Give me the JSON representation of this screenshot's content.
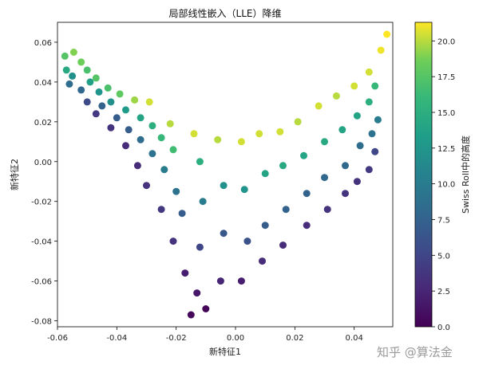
{
  "chart_data": {
    "type": "scatter",
    "title": "局部线性嵌入（LLE）降维",
    "xlabel": "新特征1",
    "ylabel": "新特征2",
    "xlim": [
      -0.06,
      0.053
    ],
    "ylim": [
      -0.083,
      0.07
    ],
    "xticks": [
      -0.06,
      -0.04,
      -0.02,
      0.0,
      0.02,
      0.04
    ],
    "xtick_labels": [
      "-0.06",
      "-0.04",
      "-0.02",
      "0.00",
      "0.02",
      "0.04"
    ],
    "yticks": [
      -0.08,
      -0.06,
      -0.04,
      -0.02,
      0.0,
      0.02,
      0.04,
      0.06
    ],
    "ytick_labels": [
      "-0.08",
      "-0.06",
      "-0.04",
      "-0.02",
      "0.00",
      "0.02",
      "0.04",
      "0.06"
    ],
    "grid": false,
    "colormap": "viridis",
    "colorbar": {
      "label": "Swiss Roll中的高度",
      "range": [
        0.0,
        21.3
      ],
      "ticks": [
        0.0,
        2.5,
        5.0,
        7.5,
        10.0,
        12.5,
        15.0,
        17.5,
        20.0
      ],
      "tick_labels": [
        "0.0",
        "2.5",
        "5.0",
        "7.5",
        "10.0",
        "12.5",
        "15.0",
        "17.5",
        "20.0"
      ]
    },
    "point_summary": "about 1000 points forming a V-shaped band; colour (height) increases from the bottom vertex up to the upper rim",
    "points": [
      {
        "x": -0.0575,
        "y": 0.053,
        "c": 17.5
      },
      {
        "x": -0.0545,
        "y": 0.055,
        "c": 19.0
      },
      {
        "x": -0.052,
        "y": 0.05,
        "c": 18.5
      },
      {
        "x": -0.057,
        "y": 0.046,
        "c": 14.5
      },
      {
        "x": -0.055,
        "y": 0.043,
        "c": 12.0
      },
      {
        "x": -0.056,
        "y": 0.039,
        "c": 8.5
      },
      {
        "x": -0.05,
        "y": 0.046,
        "c": 17.0
      },
      {
        "x": -0.049,
        "y": 0.04,
        "c": 13.5
      },
      {
        "x": -0.052,
        "y": 0.036,
        "c": 8.0
      },
      {
        "x": -0.05,
        "y": 0.03,
        "c": 5.5
      },
      {
        "x": -0.047,
        "y": 0.042,
        "c": 17.5
      },
      {
        "x": -0.046,
        "y": 0.035,
        "c": 12.5
      },
      {
        "x": -0.045,
        "y": 0.028,
        "c": 7.5
      },
      {
        "x": -0.047,
        "y": 0.024,
        "c": 4.0
      },
      {
        "x": -0.043,
        "y": 0.037,
        "c": 17.0
      },
      {
        "x": -0.042,
        "y": 0.03,
        "c": 12.0
      },
      {
        "x": -0.04,
        "y": 0.022,
        "c": 7.0
      },
      {
        "x": -0.042,
        "y": 0.017,
        "c": 3.5
      },
      {
        "x": -0.039,
        "y": 0.034,
        "c": 18.0
      },
      {
        "x": -0.037,
        "y": 0.026,
        "c": 13.0
      },
      {
        "x": -0.036,
        "y": 0.016,
        "c": 7.0
      },
      {
        "x": -0.037,
        "y": 0.008,
        "c": 3.0
      },
      {
        "x": -0.034,
        "y": 0.031,
        "c": 19.5
      },
      {
        "x": -0.032,
        "y": 0.022,
        "c": 14.0
      },
      {
        "x": -0.032,
        "y": 0.011,
        "c": 8.5
      },
      {
        "x": -0.033,
        "y": -0.002,
        "c": 3.0
      },
      {
        "x": -0.029,
        "y": 0.03,
        "c": 20.5
      },
      {
        "x": -0.028,
        "y": 0.018,
        "c": 15.0
      },
      {
        "x": -0.028,
        "y": 0.004,
        "c": 9.0
      },
      {
        "x": -0.03,
        "y": -0.012,
        "c": 3.5
      },
      {
        "x": -0.025,
        "y": 0.012,
        "c": 16.0
      },
      {
        "x": -0.024,
        "y": -0.004,
        "c": 10.0
      },
      {
        "x": -0.025,
        "y": -0.024,
        "c": 4.0
      },
      {
        "x": -0.022,
        "y": 0.019,
        "c": 20.0
      },
      {
        "x": -0.021,
        "y": 0.006,
        "c": 16.5
      },
      {
        "x": -0.02,
        "y": -0.015,
        "c": 9.0
      },
      {
        "x": -0.021,
        "y": -0.04,
        "c": 3.5
      },
      {
        "x": -0.018,
        "y": -0.026,
        "c": 7.0
      },
      {
        "x": -0.017,
        "y": -0.056,
        "c": 2.0
      },
      {
        "x": -0.014,
        "y": 0.014,
        "c": 20.5
      },
      {
        "x": -0.012,
        "y": 0.0,
        "c": 15.0
      },
      {
        "x": -0.011,
        "y": -0.02,
        "c": 10.0
      },
      {
        "x": -0.012,
        "y": -0.043,
        "c": 5.0
      },
      {
        "x": -0.013,
        "y": -0.066,
        "c": 1.5
      },
      {
        "x": -0.015,
        "y": -0.077,
        "c": 0.5
      },
      {
        "x": -0.01,
        "y": -0.074,
        "c": 0.3
      },
      {
        "x": -0.006,
        "y": 0.011,
        "c": 20.0
      },
      {
        "x": -0.004,
        "y": -0.012,
        "c": 12.0
      },
      {
        "x": -0.004,
        "y": -0.036,
        "c": 6.5
      },
      {
        "x": -0.005,
        "y": -0.06,
        "c": 2.5
      },
      {
        "x": 0.002,
        "y": 0.01,
        "c": 20.5
      },
      {
        "x": 0.003,
        "y": -0.014,
        "c": 12.5
      },
      {
        "x": 0.004,
        "y": -0.04,
        "c": 6.0
      },
      {
        "x": 0.002,
        "y": -0.06,
        "c": 2.0
      },
      {
        "x": 0.008,
        "y": 0.014,
        "c": 20.5
      },
      {
        "x": 0.01,
        "y": -0.006,
        "c": 14.0
      },
      {
        "x": 0.01,
        "y": -0.032,
        "c": 7.0
      },
      {
        "x": 0.009,
        "y": -0.05,
        "c": 3.0
      },
      {
        "x": 0.015,
        "y": 0.015,
        "c": 20.5
      },
      {
        "x": 0.016,
        "y": -0.002,
        "c": 14.5
      },
      {
        "x": 0.017,
        "y": -0.024,
        "c": 7.5
      },
      {
        "x": 0.016,
        "y": -0.042,
        "c": 3.0
      },
      {
        "x": 0.021,
        "y": 0.02,
        "c": 20.0
      },
      {
        "x": 0.023,
        "y": 0.003,
        "c": 14.0
      },
      {
        "x": 0.024,
        "y": -0.016,
        "c": 7.5
      },
      {
        "x": 0.024,
        "y": -0.032,
        "c": 3.0
      },
      {
        "x": 0.028,
        "y": 0.028,
        "c": 20.5
      },
      {
        "x": 0.03,
        "y": 0.01,
        "c": 14.5
      },
      {
        "x": 0.03,
        "y": -0.008,
        "c": 8.0
      },
      {
        "x": 0.031,
        "y": -0.024,
        "c": 3.5
      },
      {
        "x": 0.034,
        "y": 0.033,
        "c": 20.0
      },
      {
        "x": 0.036,
        "y": 0.016,
        "c": 14.0
      },
      {
        "x": 0.037,
        "y": -0.002,
        "c": 8.0
      },
      {
        "x": 0.037,
        "y": -0.016,
        "c": 3.5
      },
      {
        "x": 0.04,
        "y": 0.038,
        "c": 20.5
      },
      {
        "x": 0.041,
        "y": 0.023,
        "c": 14.0
      },
      {
        "x": 0.042,
        "y": 0.008,
        "c": 8.5
      },
      {
        "x": 0.041,
        "y": -0.01,
        "c": 3.5
      },
      {
        "x": 0.045,
        "y": 0.045,
        "c": 20.5
      },
      {
        "x": 0.045,
        "y": 0.03,
        "c": 15.0
      },
      {
        "x": 0.046,
        "y": 0.014,
        "c": 9.0
      },
      {
        "x": 0.045,
        "y": -0.004,
        "c": 4.0
      },
      {
        "x": 0.049,
        "y": 0.056,
        "c": 21.0
      },
      {
        "x": 0.047,
        "y": 0.038,
        "c": 16.0
      },
      {
        "x": 0.048,
        "y": 0.021,
        "c": 10.0
      },
      {
        "x": 0.047,
        "y": 0.005,
        "c": 5.0
      },
      {
        "x": 0.051,
        "y": 0.064,
        "c": 21.3
      }
    ]
  },
  "watermark": "知乎 @算法金"
}
